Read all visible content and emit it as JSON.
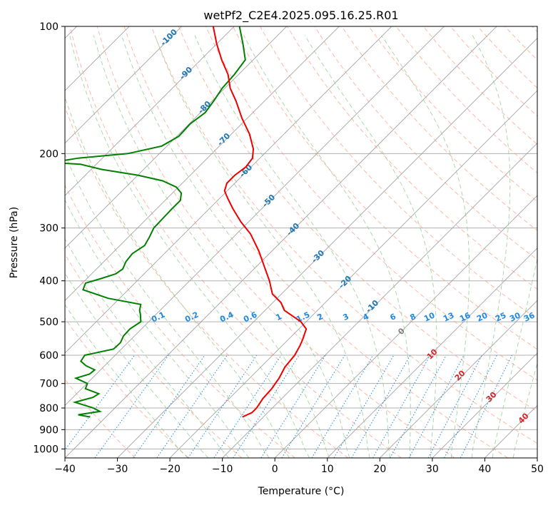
{
  "chart_data": {
    "type": "line",
    "subtype": "skew-T log-P diagram",
    "title": "wetPf2_C2E4.2025.095.16.25.R01",
    "xlabel": "Temperature (°C)",
    "ylabel": "Pressure (hPa)",
    "xlim": [
      -40,
      50
    ],
    "ylim": [
      1050,
      100
    ],
    "y_scale": "log",
    "grid": true,
    "x_ticks": [
      -40,
      -30,
      -20,
      -10,
      0,
      10,
      20,
      30,
      40,
      50
    ],
    "x_tick_labels": [
      "−40",
      "−30",
      "−20",
      "−10",
      "0",
      "10",
      "20",
      "30",
      "40",
      "50"
    ],
    "y_ticks": [
      100,
      200,
      300,
      400,
      500,
      600,
      700,
      800,
      900,
      1000
    ],
    "y_tick_labels": [
      "100",
      "200",
      "300",
      "400",
      "500",
      "600",
      "700",
      "800",
      "900",
      "1000"
    ],
    "colors": {
      "temperature": "#ee0000",
      "dewpoint": "#008000",
      "isotherm": "#999999",
      "dry_adiabat": "#ff9070",
      "moist_adiabat": "#8fc88f",
      "mixing_ratio": "#1e88e5"
    },
    "series": [
      {
        "key": "temperature",
        "pressure": [
          840,
          830,
          820,
          800,
          760,
          720,
          680,
          640,
          600,
          570,
          550,
          520,
          500,
          470,
          450,
          430,
          400,
          370,
          340,
          310,
          290,
          270,
          255,
          245,
          235,
          225,
          215,
          205,
          195,
          180,
          165,
          150,
          140,
          130,
          120,
          110,
          100
        ],
        "values": [
          -14.0,
          -13.5,
          -13.0,
          -13.0,
          -13.6,
          -13.8,
          -14.4,
          -15.4,
          -15.8,
          -16.6,
          -17.3,
          -18.6,
          -21.0,
          -26.3,
          -28.5,
          -31.7,
          -34.8,
          -38.5,
          -42.5,
          -47.3,
          -51.5,
          -55.5,
          -58.5,
          -60.5,
          -61.5,
          -61.5,
          -61.0,
          -61.4,
          -63.0,
          -66.5,
          -71.0,
          -75.5,
          -79.0,
          -82.0,
          -86.0,
          -90.0,
          -94.0
        ]
      },
      {
        "key": "dewpoint",
        "pressure": [
          840,
          830,
          815,
          800,
          775,
          755,
          740,
          720,
          700,
          680,
          665,
          650,
          635,
          620,
          600,
          580,
          560,
          540,
          520,
          500,
          480,
          470,
          455,
          440,
          420,
          405,
          395,
          385,
          375,
          360,
          345,
          330,
          315,
          300,
          285,
          270,
          258,
          248,
          240,
          232,
          225,
          218,
          212,
          210,
          205,
          200,
          192,
          182,
          170,
          160,
          150,
          140,
          130,
          120,
          110,
          100
        ],
        "values": [
          -43.0,
          -45.7,
          -42.2,
          -44.1,
          -48.7,
          -46.2,
          -45.8,
          -49.3,
          -49.9,
          -53.1,
          -51.3,
          -51.1,
          -53.6,
          -55.4,
          -55.8,
          -51.5,
          -51.4,
          -52.1,
          -52.2,
          -51.5,
          -53.0,
          -53.9,
          -54.8,
          -62.2,
          -68.6,
          -69.4,
          -67.3,
          -65.4,
          -65.0,
          -65.8,
          -66.1,
          -65.3,
          -66.0,
          -66.9,
          -67.0,
          -67.1,
          -67.1,
          -68.3,
          -70.4,
          -74.2,
          -80.0,
          -88.0,
          -93.0,
          -98.9,
          -94.6,
          -86.0,
          -81.0,
          -79.6,
          -79.8,
          -79.1,
          -79.7,
          -80.5,
          -80.8,
          -81.5,
          -85.0,
          -89.0
        ]
      }
    ],
    "dry_adiabat_labels": [
      "-100",
      "-90",
      "-80",
      "-70",
      "-60",
      "-50",
      "-40",
      "-30",
      "-20",
      "-10",
      "0"
    ],
    "moist_adiabat_labels": [
      "0",
      "10",
      "20",
      "30",
      "40"
    ],
    "mixing_ratio_labels": [
      "0.1",
      "0.2",
      "0.4",
      "0.6",
      "1",
      "1.5",
      "2",
      "3",
      "4",
      "6",
      "8",
      "10",
      "13",
      "16",
      "20",
      "25",
      "30",
      "36"
    ]
  }
}
